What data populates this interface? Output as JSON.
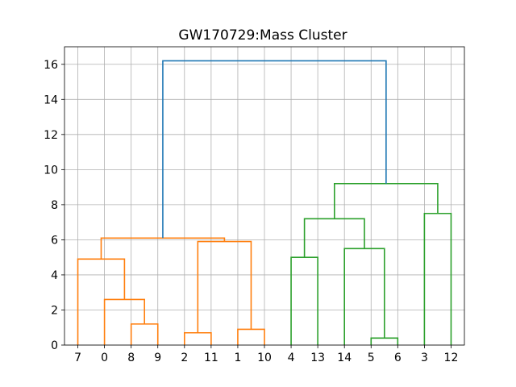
{
  "chart_data": {
    "type": "dendrogram",
    "title": "GW170729:Mass Cluster",
    "leaf_labels": [
      "7",
      "0",
      "8",
      "9",
      "2",
      "11",
      "1",
      "10",
      "4",
      "13",
      "14",
      "5",
      "6",
      "3",
      "12"
    ],
    "yticks": [
      0,
      2,
      4,
      6,
      8,
      10,
      12,
      14,
      16
    ],
    "ylim": [
      0,
      17
    ],
    "grid": true,
    "colors": {
      "cluster_orange": "#ff7f0e",
      "cluster_green": "#2ca02c",
      "above_threshold": "#1f77b4"
    },
    "links": [
      {
        "x": [
          2,
          2,
          3,
          3
        ],
        "y": [
          0,
          1.2,
          1.2,
          0
        ],
        "color": "cluster_orange"
      },
      {
        "x": [
          1,
          1,
          2.5,
          2.5
        ],
        "y": [
          0,
          2.6,
          2.6,
          1.2
        ],
        "color": "cluster_orange"
      },
      {
        "x": [
          0,
          0,
          1.75,
          1.75
        ],
        "y": [
          0,
          4.9,
          4.9,
          2.6
        ],
        "color": "cluster_orange"
      },
      {
        "x": [
          4,
          4,
          5,
          5
        ],
        "y": [
          0,
          0.7,
          0.7,
          0
        ],
        "color": "cluster_orange"
      },
      {
        "x": [
          6,
          6,
          7,
          7
        ],
        "y": [
          0,
          0.9,
          0.9,
          0
        ],
        "color": "cluster_orange"
      },
      {
        "x": [
          4.5,
          4.5,
          6.5,
          6.5
        ],
        "y": [
          0.7,
          5.9,
          5.9,
          0.9
        ],
        "color": "cluster_orange"
      },
      {
        "x": [
          0.875,
          0.875,
          5.5,
          5.5
        ],
        "y": [
          4.9,
          6.1,
          6.1,
          5.9
        ],
        "color": "cluster_orange"
      },
      {
        "x": [
          8,
          8,
          9,
          9
        ],
        "y": [
          0,
          5.0,
          5.0,
          0
        ],
        "color": "cluster_green"
      },
      {
        "x": [
          11,
          11,
          12,
          12
        ],
        "y": [
          0,
          0.4,
          0.4,
          0
        ],
        "color": "cluster_green"
      },
      {
        "x": [
          10,
          10,
          11.5,
          11.5
        ],
        "y": [
          0,
          5.5,
          5.5,
          0.4
        ],
        "color": "cluster_green"
      },
      {
        "x": [
          8.5,
          8.5,
          10.75,
          10.75
        ],
        "y": [
          5.0,
          7.2,
          7.2,
          5.5
        ],
        "color": "cluster_green"
      },
      {
        "x": [
          13,
          13,
          14,
          14
        ],
        "y": [
          0,
          7.5,
          7.5,
          0
        ],
        "color": "cluster_green"
      },
      {
        "x": [
          9.625,
          9.625,
          13.5,
          13.5
        ],
        "y": [
          7.2,
          9.2,
          9.2,
          7.5
        ],
        "color": "cluster_green"
      },
      {
        "x": [
          3.1875,
          3.1875,
          11.5625,
          11.5625
        ],
        "y": [
          6.1,
          16.2,
          16.2,
          9.2
        ],
        "color": "above_threshold"
      }
    ]
  }
}
